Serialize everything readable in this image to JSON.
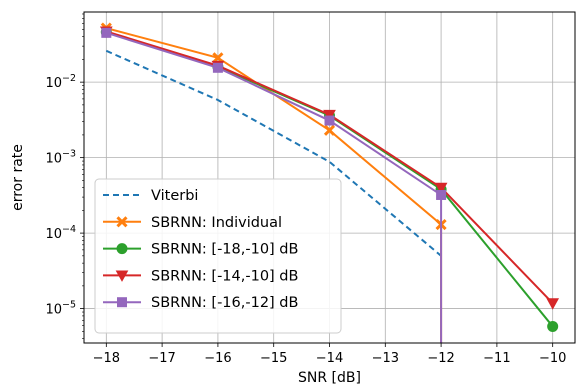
{
  "chart_data": {
    "type": "line",
    "xlabel": "SNR [dB]",
    "ylabel": "error rate",
    "xlim": [
      -18.4,
      -9.6
    ],
    "ylim": [
      3.5e-06,
      0.085
    ],
    "yscale": "log",
    "grid": true,
    "legend_position": "lower-left",
    "x_ticks": [
      -18,
      -17,
      -16,
      -15,
      -14,
      -13,
      -12,
      -11,
      -10
    ],
    "x_tick_labels": [
      "−18",
      "−17",
      "−16",
      "−15",
      "−14",
      "−13",
      "−12",
      "−11",
      "−10"
    ],
    "y_ticks": [
      1e-05,
      0.0001,
      0.001,
      0.01
    ],
    "y_tick_labels": [
      {
        "base": "10",
        "exp": "−5"
      },
      {
        "base": "10",
        "exp": "−4"
      },
      {
        "base": "10",
        "exp": "−3"
      },
      {
        "base": "10",
        "exp": "−2"
      }
    ],
    "series": [
      {
        "name": "Viterbi",
        "color": "#1f77b4",
        "dash": true,
        "marker": "none",
        "x": [
          -18,
          -16,
          -14,
          -12
        ],
        "y": [
          0.026,
          0.0058,
          0.00088,
          5e-05
        ],
        "drop_to_zero_after_last": false
      },
      {
        "name": "SBRNN: Individual",
        "color": "#ff7f0e",
        "marker": "x",
        "x": [
          -18,
          -16,
          -14,
          -12
        ],
        "y": [
          0.052,
          0.021,
          0.0023,
          0.00013
        ],
        "drop_to_zero_after_last": true
      },
      {
        "name": "SBRNN: [-18,-10] dB",
        "color": "#2ca02c",
        "marker": "circle",
        "x": [
          -18,
          -16,
          -14,
          -12,
          -10
        ],
        "y": [
          0.046,
          0.016,
          0.0036,
          0.00038,
          5.8e-06
        ],
        "drop_to_zero_after_last": false
      },
      {
        "name": "SBRNN: [-14,-10] dB",
        "color": "#d62728",
        "marker": "triangle-down",
        "x": [
          -18,
          -16,
          -14,
          -12,
          -10
        ],
        "y": [
          0.047,
          0.0165,
          0.0037,
          0.0004,
          1.18e-05
        ],
        "drop_to_zero_after_last": false
      },
      {
        "name": "SBRNN: [-16,-12] dB",
        "color": "#9467bd",
        "marker": "square",
        "x": [
          -18,
          -16,
          -14,
          -12
        ],
        "y": [
          0.045,
          0.0155,
          0.0031,
          0.00032
        ],
        "drop_to_zero_after_last": true
      }
    ]
  }
}
